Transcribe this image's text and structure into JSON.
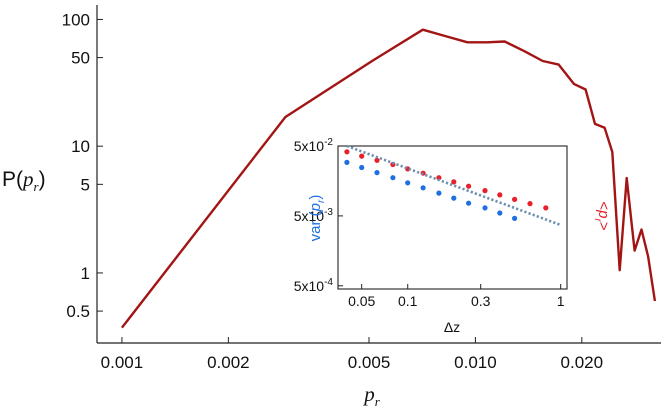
{
  "chart_data": [
    {
      "type": "line",
      "scale": "log-log",
      "xlabel": "p_r",
      "ylabel": "P(p_r)",
      "xlim": [
        0.00085,
        0.0335
      ],
      "ylim": [
        0.28,
        130
      ],
      "x_ticks": [
        0.001,
        0.002,
        0.005,
        0.01,
        0.02
      ],
      "x_tick_labels": [
        "0.001",
        "0.002",
        "0.005",
        "0.010",
        "0.020"
      ],
      "y_ticks": [
        0.5,
        1,
        5,
        10,
        50,
        100
      ],
      "y_tick_labels": [
        "0.5",
        "1",
        "5",
        "10",
        "50",
        "100"
      ],
      "series": [
        {
          "name": "P(p_r)",
          "color": "#a31515",
          "x": [
            0.001,
            0.0029,
            0.0051,
            0.0071,
            0.0082,
            0.0095,
            0.0108,
            0.0121,
            0.0138,
            0.0155,
            0.0172,
            0.019,
            0.0205,
            0.0218,
            0.0232,
            0.0244,
            0.0256,
            0.0268,
            0.0282,
            0.0295,
            0.0308,
            0.0322
          ],
          "y": [
            0.37,
            17,
            47,
            83,
            74,
            66,
            66,
            67,
            56,
            47,
            44,
            31,
            28,
            15,
            14,
            9,
            1.05,
            5.6,
            1.5,
            2.2,
            1.35,
            0.6
          ]
        }
      ]
    },
    {
      "type": "scatter",
      "scale": "log-log",
      "xlabel": "Δz",
      "ylabel_left": "var (p_r)",
      "ylabel_right": "<p_r>",
      "xlim": [
        0.035,
        1.1
      ],
      "ylim": [
        0.00045,
        0.05
      ],
      "x_ticks": [
        0.05,
        0.1,
        0.3,
        1
      ],
      "x_tick_labels": [
        "0.05",
        "0.1",
        "0.3",
        "1"
      ],
      "y_ticks": [
        0.0005,
        0.005,
        0.05
      ],
      "y_tick_labels": [
        "5x10",
        "5x10",
        "5x10"
      ],
      "y_tick_exponents": [
        "-4",
        "-3",
        "-2"
      ],
      "series": [
        {
          "name": "var (p_r)",
          "color": "#1e6fe0",
          "x": [
            0.04,
            0.05,
            0.063,
            0.08,
            0.1,
            0.126,
            0.16,
            0.2,
            0.25,
            0.32,
            0.4,
            0.5
          ],
          "y": [
            0.0291,
            0.0246,
            0.0208,
            0.0176,
            0.0149,
            0.0126,
            0.0106,
            0.009,
            0.0076,
            0.0065,
            0.0055,
            0.0046
          ]
        },
        {
          "name": "<p_r>",
          "color": "#e8202a",
          "x": [
            0.04,
            0.05,
            0.063,
            0.08,
            0.1,
            0.126,
            0.16,
            0.2,
            0.25,
            0.32,
            0.4,
            0.5,
            0.63,
            0.8
          ],
          "y": [
            0.0413,
            0.0359,
            0.0312,
            0.0272,
            0.0235,
            0.0204,
            0.0176,
            0.0153,
            0.0133,
            0.0115,
            0.01,
            0.0086,
            0.0075,
            0.0065
          ]
        },
        {
          "name": "guide",
          "style": "dashed",
          "color": "#6d8fb0",
          "x": [
            0.04,
            1.0
          ],
          "y": [
            0.05,
            0.0037
          ]
        }
      ]
    }
  ]
}
